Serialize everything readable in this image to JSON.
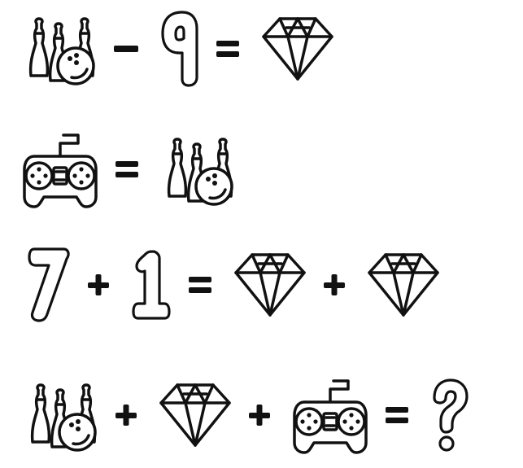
{
  "puzzle": {
    "equations": [
      {
        "id": "eq1",
        "tokens": [
          {
            "kind": "icon",
            "icon": "bowling-pins-icon"
          },
          {
            "kind": "operator",
            "symbol": "minus"
          },
          {
            "kind": "number",
            "value": "9"
          },
          {
            "kind": "operator",
            "symbol": "equals"
          },
          {
            "kind": "icon",
            "icon": "diamond-icon"
          }
        ]
      },
      {
        "id": "eq2",
        "tokens": [
          {
            "kind": "icon",
            "icon": "gamepad-icon"
          },
          {
            "kind": "operator",
            "symbol": "equals"
          },
          {
            "kind": "icon",
            "icon": "bowling-pins-icon"
          }
        ]
      },
      {
        "id": "eq3",
        "tokens": [
          {
            "kind": "number",
            "value": "7"
          },
          {
            "kind": "operator",
            "symbol": "plus"
          },
          {
            "kind": "number",
            "value": "1"
          },
          {
            "kind": "operator",
            "symbol": "equals"
          },
          {
            "kind": "icon",
            "icon": "diamond-icon"
          },
          {
            "kind": "operator",
            "symbol": "plus"
          },
          {
            "kind": "icon",
            "icon": "diamond-icon"
          }
        ]
      },
      {
        "id": "eq4",
        "tokens": [
          {
            "kind": "icon",
            "icon": "bowling-pins-icon"
          },
          {
            "kind": "operator",
            "symbol": "plus"
          },
          {
            "kind": "icon",
            "icon": "diamond-icon"
          },
          {
            "kind": "operator",
            "symbol": "plus"
          },
          {
            "kind": "icon",
            "icon": "gamepad-icon"
          },
          {
            "kind": "operator",
            "symbol": "equals"
          },
          {
            "kind": "unknown",
            "value": "?"
          }
        ]
      }
    ],
    "colors": {
      "ink": "#111111",
      "background": "#ffffff"
    }
  }
}
